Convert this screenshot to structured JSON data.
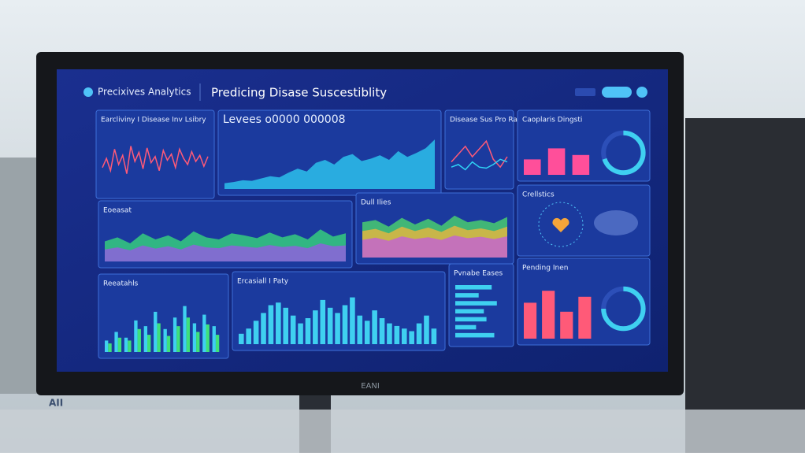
{
  "header": {
    "brand": "Precixives Analytics",
    "title": "Predicing Disase Suscestiblity"
  },
  "monitor_label": "EANI",
  "corner_label": "AII",
  "panels": [
    {
      "title": "Earcliviny I Disease Inv Lsibry",
      "type": "line",
      "series": [
        {
          "color": "#ff5a78",
          "values": [
            40,
            55,
            35,
            70,
            45,
            60,
            30,
            75,
            50,
            65,
            38,
            72,
            48,
            58,
            35,
            68,
            52,
            62,
            40,
            70,
            55,
            45,
            66,
            50,
            60,
            42,
            58
          ]
        }
      ]
    },
    {
      "title": "Levees o0000 000008",
      "type": "area",
      "series": [
        {
          "color": "#2fd3f5",
          "values": [
            10,
            12,
            15,
            14,
            18,
            22,
            20,
            28,
            35,
            30,
            45,
            50,
            42,
            55,
            60,
            48,
            52,
            58,
            50,
            65,
            55,
            62,
            70,
            85
          ]
        }
      ]
    },
    {
      "title": "Disease Sus Pro Rate",
      "type": "line",
      "series": [
        {
          "color": "#ff5a78",
          "values": [
            40,
            55,
            70,
            50,
            65,
            80,
            45,
            30,
            50
          ]
        },
        {
          "color": "#2fd3f5",
          "values": [
            30,
            35,
            25,
            40,
            30,
            28,
            35,
            45,
            40
          ]
        }
      ]
    },
    {
      "title": "Caoplaris Dingsti",
      "type": "bar",
      "series": [
        {
          "color": "#ff4f9a",
          "values": [
            35,
            60,
            45
          ]
        }
      ],
      "ring": 70
    },
    {
      "title": "Eoeasat",
      "type": "area",
      "series": [
        {
          "color": "#39e07a",
          "values": [
            50,
            60,
            45,
            70,
            55,
            65,
            50,
            75,
            60,
            55,
            70,
            65,
            58,
            72,
            60,
            68,
            55,
            80,
            62,
            70
          ]
        },
        {
          "color": "#9b55e8",
          "values": [
            30,
            35,
            28,
            40,
            32,
            38,
            30,
            42,
            35,
            33,
            40,
            37,
            34,
            41,
            36,
            39,
            33,
            45,
            38,
            40
          ]
        }
      ]
    },
    {
      "title": "Dull Ilies",
      "type": "area",
      "series": [
        {
          "color": "#4fe06a",
          "values": [
            80,
            85,
            70,
            90,
            75,
            88,
            72,
            95,
            80,
            85,
            78,
            92
          ]
        },
        {
          "color": "#f5b63a",
          "values": [
            60,
            65,
            55,
            70,
            60,
            68,
            58,
            72,
            62,
            66,
            60,
            70
          ]
        },
        {
          "color": "#c35be0",
          "values": [
            40,
            45,
            38,
            48,
            42,
            46,
            40,
            50,
            44,
            47,
            42,
            48
          ]
        }
      ]
    },
    {
      "title": "Crellstics",
      "type": "map"
    },
    {
      "title": "Reeatahls",
      "type": "bar",
      "series": [
        {
          "color": "#3fd0f0",
          "values": [
            20,
            35,
            25,
            55,
            45,
            70,
            40,
            60,
            80,
            50,
            65,
            45
          ]
        },
        {
          "color": "#3fe07a",
          "values": [
            15,
            25,
            20,
            40,
            30,
            50,
            28,
            45,
            60,
            35,
            48,
            30
          ]
        }
      ]
    },
    {
      "title": "Ercasiall I Paty",
      "type": "bar",
      "series": [
        {
          "color": "#3fd0f0",
          "values": [
            20,
            30,
            45,
            60,
            75,
            80,
            70,
            55,
            40,
            50,
            65,
            85,
            70,
            60,
            75,
            90,
            55,
            45,
            65,
            50,
            40,
            35,
            30,
            25,
            40,
            55,
            30
          ]
        }
      ]
    },
    {
      "title": "Pvnabe Eases",
      "type": "hbar",
      "series": [
        {
          "color": "#3fd0f0",
          "values": [
            70,
            45,
            80,
            55,
            60,
            40,
            75
          ]
        }
      ]
    },
    {
      "title": "Pending Inen",
      "type": "bar",
      "series": [
        {
          "color": "#ff5a78",
          "values": [
            60,
            80,
            45,
            70
          ]
        }
      ],
      "ring": 75
    }
  ]
}
